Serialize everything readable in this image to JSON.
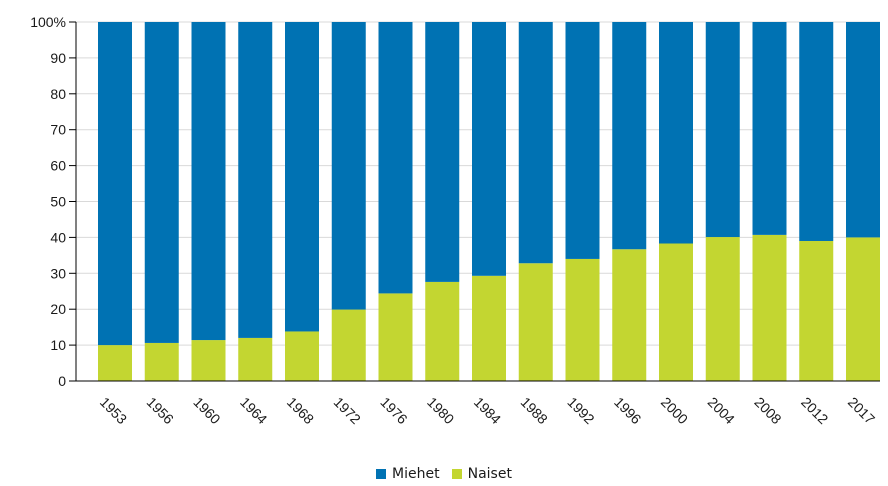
{
  "chart_data": {
    "type": "bar",
    "stacked": true,
    "categories": [
      "1953",
      "1956",
      "1960",
      "1964",
      "1968",
      "1972",
      "1976",
      "1980",
      "1984",
      "1988",
      "1992",
      "1996",
      "2000",
      "2004",
      "2008",
      "2012",
      "2017"
    ],
    "series": [
      {
        "name": "Miehet",
        "color": "#0072b3",
        "values": [
          90,
          89.4,
          88.6,
          88,
          86.2,
          80.1,
          75.6,
          72.4,
          70.7,
          67.2,
          66,
          63.3,
          61.7,
          59.9,
          59.3,
          61,
          60
        ]
      },
      {
        "name": "Naiset",
        "color": "#c3d631",
        "values": [
          10,
          10.6,
          11.4,
          12,
          13.8,
          19.9,
          24.4,
          27.6,
          29.3,
          32.8,
          34,
          36.7,
          38.3,
          40.1,
          40.7,
          39,
          40
        ]
      }
    ],
    "yticks": [
      "0",
      "10",
      "20",
      "30",
      "40",
      "50",
      "60",
      "70",
      "80",
      "90",
      "100%"
    ],
    "ylim": [
      0,
      100
    ],
    "grid": true,
    "legend_position": "bottom"
  }
}
